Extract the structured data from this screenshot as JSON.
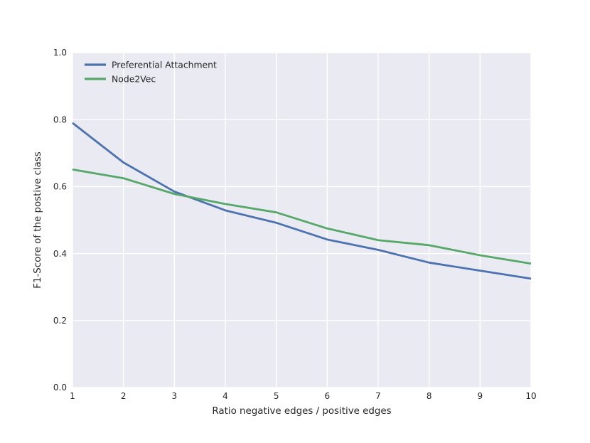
{
  "chart_data": {
    "type": "line",
    "title": "",
    "xlabel": "Ratio negative edges / positive edges",
    "ylabel": "F1-Score of the postive class",
    "x": [
      1,
      2,
      3,
      4,
      5,
      6,
      7,
      8,
      9,
      10
    ],
    "xlim": [
      1,
      10
    ],
    "ylim": [
      0.0,
      1.0
    ],
    "xticks": [
      1,
      2,
      3,
      4,
      5,
      6,
      7,
      8,
      9,
      10
    ],
    "xtick_labels": [
      "1",
      "2",
      "3",
      "4",
      "5",
      "6",
      "7",
      "8",
      "9",
      "10"
    ],
    "yticks": [
      0.0,
      0.2,
      0.4,
      0.6,
      0.8,
      1.0
    ],
    "ytick_labels": [
      "0.0",
      "0.2",
      "0.4",
      "0.6",
      "0.8",
      "1.0"
    ],
    "grid": true,
    "legend_position": "upper left",
    "series": [
      {
        "name": "Preferential Attachment",
        "color": "#4C72B0",
        "values": [
          0.79,
          0.672,
          0.585,
          0.529,
          0.492,
          0.442,
          0.411,
          0.373,
          0.349,
          0.325
        ]
      },
      {
        "name": "Node2Vec",
        "color": "#55A868",
        "values": [
          0.651,
          0.625,
          0.578,
          0.548,
          0.523,
          0.475,
          0.44,
          0.425,
          0.395,
          0.37
        ]
      }
    ],
    "colors": {
      "figure_background": "#ffffff",
      "plot_background": "#EAEAF2",
      "grid": "#ffffff",
      "text": "#262626"
    }
  }
}
